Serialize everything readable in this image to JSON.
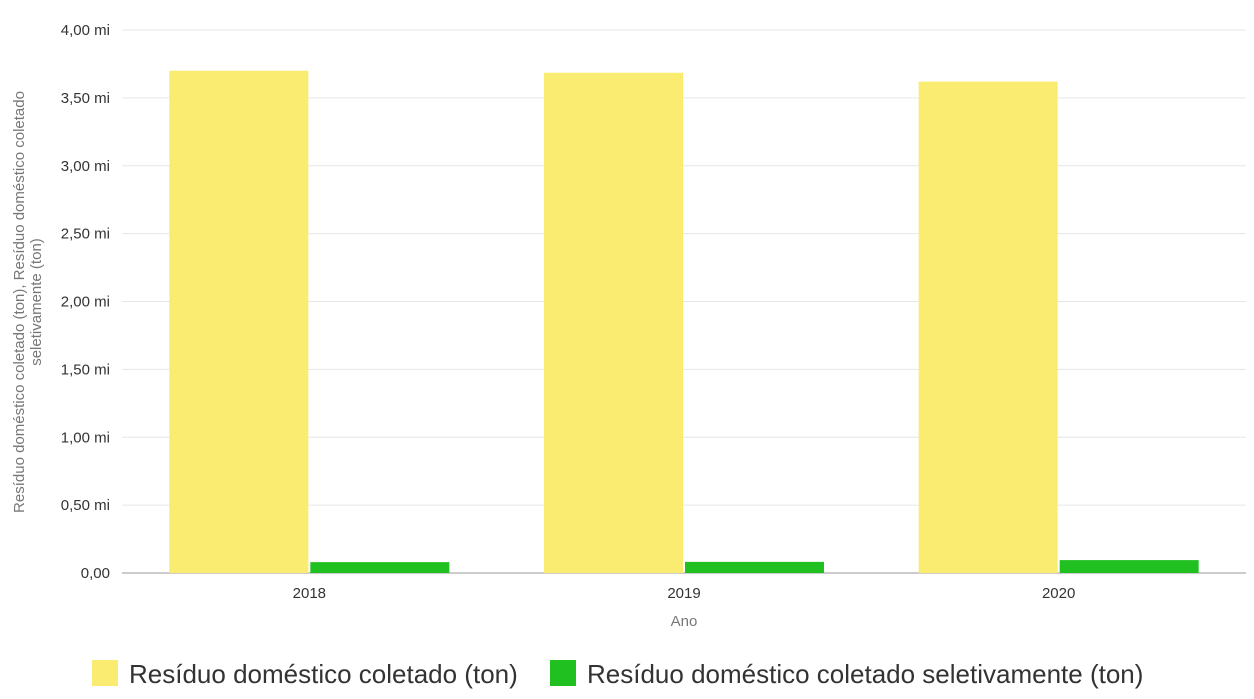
{
  "chart_data": {
    "type": "bar",
    "title": "",
    "xlabel": "Ano",
    "ylabel": "Resíduo doméstico coletado (ton), Resíduo doméstico coletado seletivamente (ton)",
    "ylabel_lines": [
      "Resíduo doméstico coletado (ton), Resíduo doméstico coletado",
      "seletivamente (ton)"
    ],
    "categories": [
      "2018",
      "2019",
      "2020"
    ],
    "ylim": [
      0,
      4000000
    ],
    "yticks": [
      0,
      500000,
      1000000,
      1500000,
      2000000,
      2500000,
      3000000,
      3500000,
      4000000
    ],
    "ytick_labels": [
      "0,00",
      "0,50 mi",
      "1,00 mi",
      "1,50 mi",
      "2,00 mi",
      "2,50 mi",
      "3,00 mi",
      "3,50 mi",
      "4,00 mi"
    ],
    "grid": true,
    "legend_position": "bottom-center",
    "series": [
      {
        "name": "Resíduo doméstico coletado (ton)",
        "color": "#f9ec70",
        "values": [
          3700000,
          3685000,
          3620000
        ]
      },
      {
        "name": "Resíduo doméstico coletado seletivamente (ton)",
        "color": "#1fc01f",
        "values": [
          80000,
          82000,
          95000
        ]
      }
    ]
  }
}
